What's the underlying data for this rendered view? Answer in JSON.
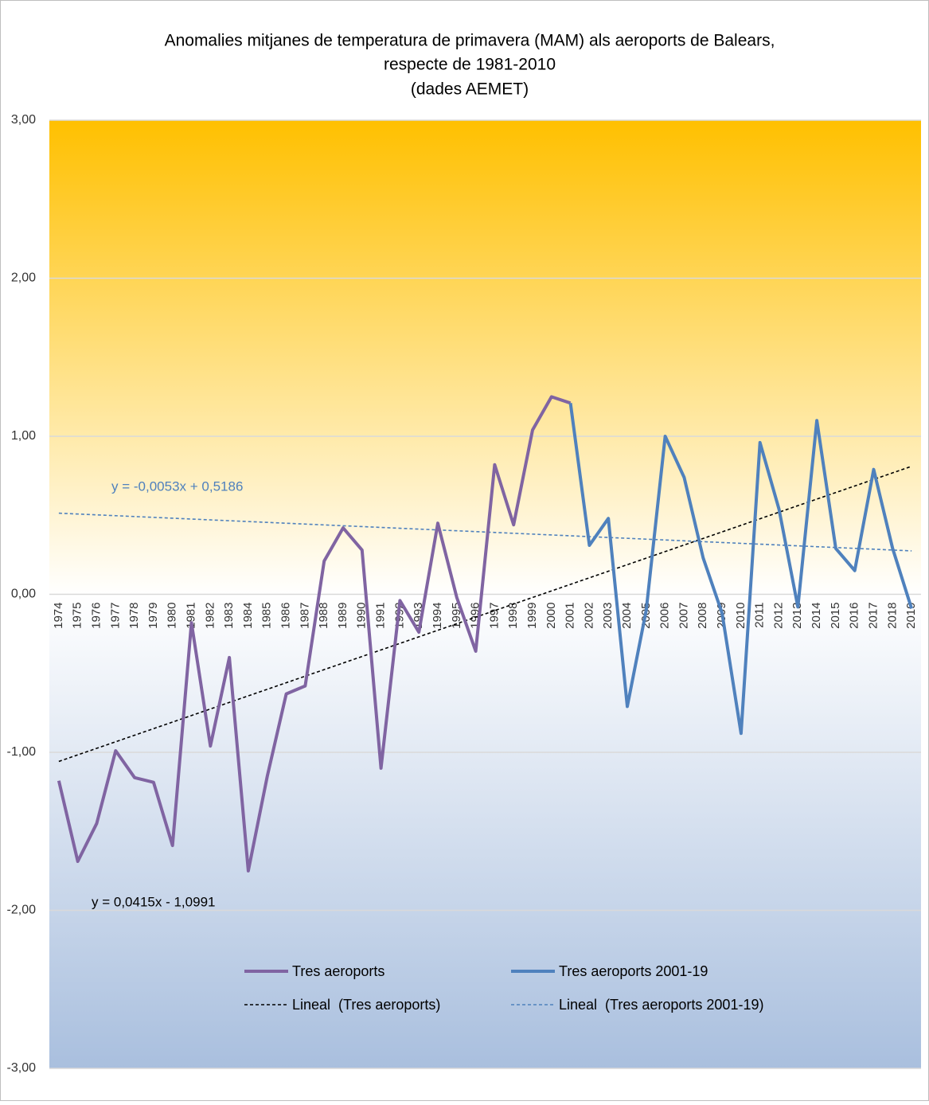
{
  "chart_data": {
    "type": "line",
    "title": [
      "Anomalies mitjanes de temperatura de primavera (MAM) als aeroports de Balears,",
      "respecte de 1981-2010",
      "(dades AEMET)"
    ],
    "categories": [
      "1974",
      "1975",
      "1976",
      "1977",
      "1978",
      "1979",
      "1980",
      "1981",
      "1982",
      "1983",
      "1984",
      "1985",
      "1986",
      "1987",
      "1988",
      "1989",
      "1990",
      "1991",
      "1992",
      "1993",
      "1994",
      "1995",
      "1996",
      "1997",
      "1998",
      "1999",
      "2000",
      "2001",
      "2002",
      "2003",
      "2004",
      "2005",
      "2006",
      "2007",
      "2008",
      "2009",
      "2010",
      "2011",
      "2012",
      "2013",
      "2014",
      "2015",
      "2016",
      "2017",
      "2018",
      "2019"
    ],
    "series": [
      {
        "name": "Tres aeroports",
        "color": "#8064a2",
        "values": [
          -1.18,
          -1.69,
          -1.45,
          -0.99,
          -1.16,
          -1.19,
          -1.59,
          -0.18,
          -0.96,
          -0.4,
          -1.75,
          -1.15,
          -0.63,
          -0.58,
          0.21,
          0.42,
          0.28,
          -1.1,
          -0.04,
          -0.24,
          0.45,
          -0.02,
          -0.36,
          0.82,
          0.44,
          1.04,
          1.25,
          1.21,
          null,
          null,
          null,
          null,
          null,
          null,
          null,
          null,
          null,
          null,
          null,
          null,
          null,
          null,
          null,
          null,
          null,
          null
        ]
      },
      {
        "name": "Tres aeroports 2001-19",
        "color": "#4f81bd",
        "values": [
          null,
          null,
          null,
          null,
          null,
          null,
          null,
          null,
          null,
          null,
          null,
          null,
          null,
          null,
          null,
          null,
          null,
          null,
          null,
          null,
          null,
          null,
          null,
          null,
          null,
          null,
          null,
          1.21,
          0.31,
          0.48,
          -0.71,
          -0.1,
          1.0,
          0.74,
          0.23,
          -0.12,
          -0.88,
          0.96,
          0.54,
          -0.08,
          1.1,
          0.29,
          0.15,
          0.79,
          0.29,
          -0.09
        ]
      }
    ],
    "trendlines": [
      {
        "name": "Lineal  (Tres aeroports)",
        "equation": "y = 0,0415x - 1,0991",
        "slope": 0.0415,
        "intercept": -1.0991,
        "color": "#000000"
      },
      {
        "name": "Lineal  (Tres aeroports 2001-19)",
        "equation": "y = -0,0053x + 0,5186",
        "slope": -0.0053,
        "intercept": 0.5186,
        "color": "#4f81bd"
      }
    ],
    "ylim": [
      -3,
      3
    ],
    "yticks": [
      {
        "value": -3,
        "label": "-3,00"
      },
      {
        "value": -2,
        "label": "-2,00"
      },
      {
        "value": -1,
        "label": "-1,00"
      },
      {
        "value": 0,
        "label": "0,00"
      },
      {
        "value": 1,
        "label": "1,00"
      },
      {
        "value": 2,
        "label": "2,00"
      },
      {
        "value": 3,
        "label": "3,00"
      }
    ],
    "grid": true
  }
}
